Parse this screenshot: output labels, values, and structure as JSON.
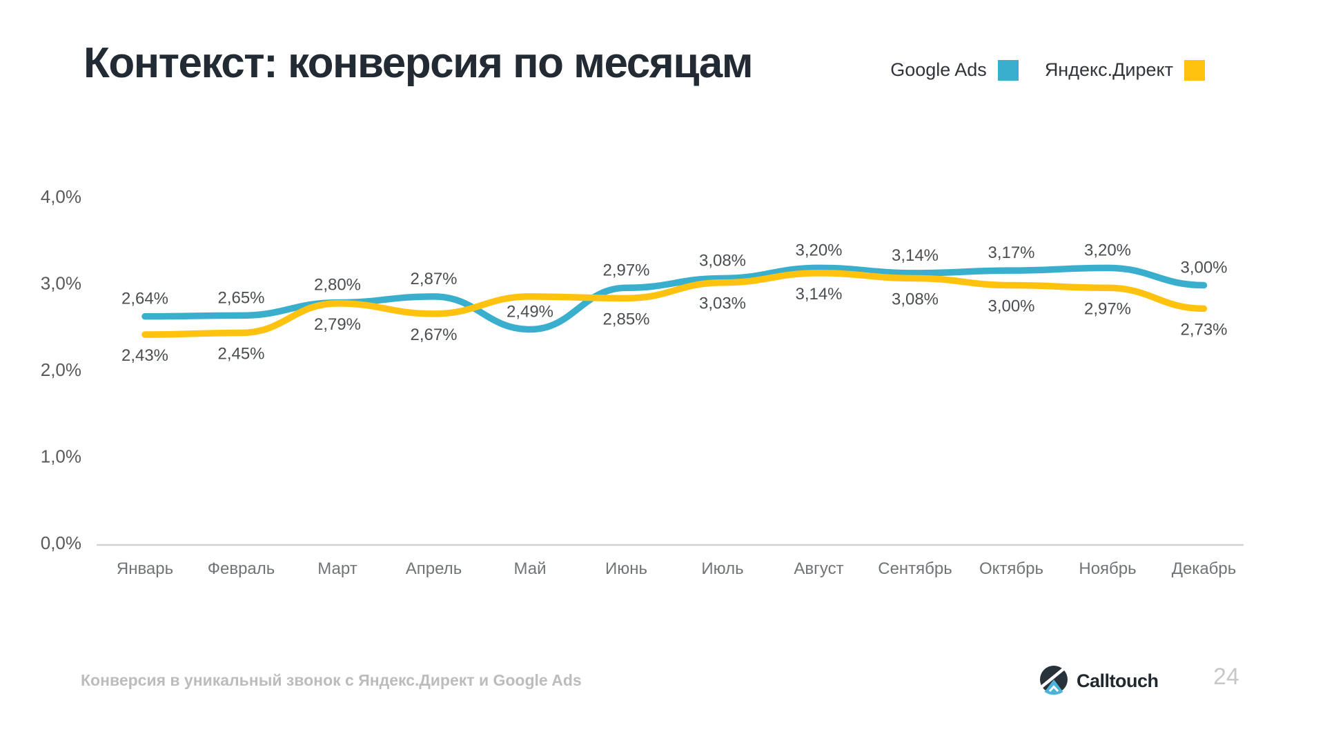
{
  "title": "Контекст: конверсия по месяцам",
  "legend": [
    {
      "label": "Google Ads",
      "color": "#39AFCD"
    },
    {
      "label": "Яндекс.Директ",
      "color": "#FFC20E"
    }
  ],
  "footer": {
    "caption": "Конверсия в уникальный звонок с Яндекс.Директ и Google Ads",
    "brand": "Calltouch",
    "page_number": "24"
  },
  "chart_data": {
    "type": "line",
    "title": "Контекст: конверсия по месяцам",
    "legend_position": "top-right",
    "grid": false,
    "ylim": [
      0,
      4
    ],
    "categories": [
      "Январь",
      "Февраль",
      "Март",
      "Апрель",
      "Май",
      "Июнь",
      "Июль",
      "Август",
      "Сентябрь",
      "Октябрь",
      "Ноябрь",
      "Декабрь"
    ],
    "y_axis": {
      "ticks": [
        {
          "label": "4,0%",
          "value": 4
        },
        {
          "label": "3,0%",
          "value": 3
        },
        {
          "label": "2,0%",
          "value": 2
        },
        {
          "label": "1,0%",
          "value": 1
        },
        {
          "label": "0,0%",
          "value": 0
        }
      ]
    },
    "series": [
      {
        "name": "Google Ads",
        "color": "#39AFCD",
        "label_position": "above",
        "values": [
          2.64,
          2.65,
          2.8,
          2.87,
          2.49,
          2.97,
          3.08,
          3.2,
          3.14,
          3.17,
          3.2,
          3.0
        ],
        "labels": [
          "2,64%",
          "2,65%",
          "2,80%",
          "2,87%",
          "2,49%",
          "2,97%",
          "3,08%",
          "3,20%",
          "3,14%",
          "3,17%",
          "3,20%",
          "3,00%"
        ]
      },
      {
        "name": "Яндекс.Директ",
        "color": "#FFC20E",
        "label_position": "below",
        "values": [
          2.43,
          2.45,
          2.79,
          2.67,
          2.87,
          2.85,
          3.03,
          3.14,
          3.08,
          3.0,
          2.97,
          2.73
        ],
        "labels": [
          "2,43%",
          "2,45%",
          "2,79%",
          "2,67%",
          "",
          "2,85%",
          "3,03%",
          "3,14%",
          "3,08%",
          "3,00%",
          "2,97%",
          "2,73%"
        ]
      }
    ]
  }
}
